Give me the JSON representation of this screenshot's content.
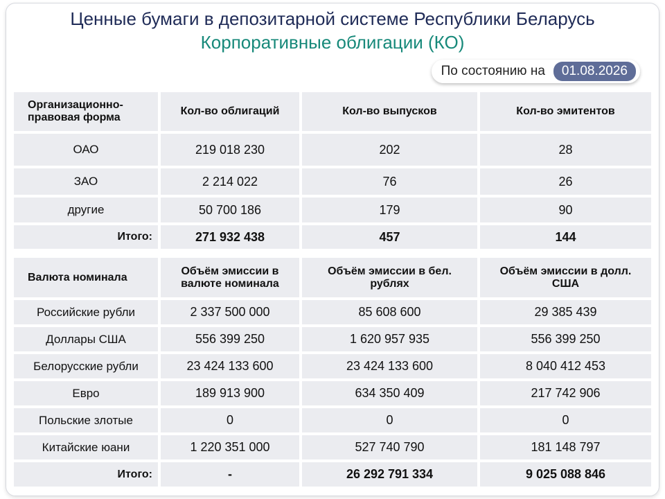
{
  "header": {
    "title": "Ценные бумаги в депозитарной системе Республики Беларусь",
    "subtitle": "Корпоративные облигации (КО)",
    "date_label": "По состоянию на",
    "date": "01.08.2026"
  },
  "table1": {
    "columns": [
      "Организационно-правовая форма",
      "Кол-во облигаций",
      "Кол-во выпусков",
      "Кол-во эмитентов"
    ],
    "rows": [
      [
        "ОАО",
        "219 018 230",
        "202",
        "28"
      ],
      [
        "ЗАО",
        "2 214 022",
        "76",
        "26"
      ],
      [
        "другие",
        "50 700 186",
        "179",
        "90"
      ],
      [
        "Итого:",
        "271 932 438",
        "457",
        "144"
      ]
    ]
  },
  "table2": {
    "columns": [
      "Валюта номинала",
      "Объём эмиссии в валюте номинала",
      "Объём эмиссии в бел. рублях",
      "Объём эмиссии в долл. США"
    ],
    "rows": [
      [
        "Российские рубли",
        "2 337 500 000",
        "85 608 600",
        "29 385 439"
      ],
      [
        "Доллары США",
        "556 399 250",
        "1 620 957 935",
        "556 399 250"
      ],
      [
        "Белорусские рубли",
        "23 424 133 600",
        "23 424 133 600",
        "8 040 412 453"
      ],
      [
        "Евро",
        "189 913 900",
        "634 350 409",
        "217 742 906"
      ],
      [
        "Польские злотые",
        "0",
        "0",
        "0"
      ],
      [
        "Китайские юани",
        "1 220 351 000",
        "527 740 790",
        "181 148 797"
      ],
      [
        "Итого:",
        "-",
        "26 292 791 334",
        "9 025 088 846"
      ]
    ]
  }
}
